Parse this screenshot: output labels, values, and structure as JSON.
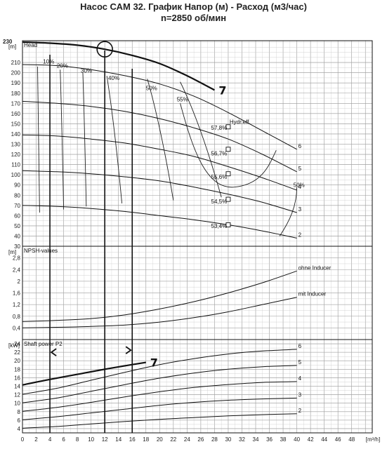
{
  "title": "Насос САМ 32. График  Напор (м) - Расход (м3/час)",
  "subtitle": "n=2850 об/мин",
  "chart_data": [
    {
      "type": "line",
      "panel": "head",
      "unit_label": "[m]",
      "name_label": "Head",
      "top_mark": "230",
      "xlim": [
        0,
        51
      ],
      "ylim": [
        30,
        230
      ],
      "yticks": [
        30,
        40,
        50,
        60,
        70,
        80,
        90,
        100,
        110,
        120,
        130,
        140,
        150,
        160,
        170,
        180,
        190,
        200,
        210
      ],
      "series": [
        {
          "name": "2",
          "x": [
            0,
            5,
            10,
            15,
            20,
            25,
            30,
            35,
            40
          ],
          "y": [
            70,
            69,
            67,
            64,
            60,
            56,
            51,
            45,
            38
          ]
        },
        {
          "name": "3",
          "x": [
            0,
            5,
            10,
            15,
            20,
            25,
            30,
            35,
            40
          ],
          "y": [
            104,
            103,
            101,
            98,
            94,
            88,
            81,
            73,
            63
          ]
        },
        {
          "name": "4",
          "x": [
            0,
            5,
            10,
            15,
            20,
            25,
            30,
            35,
            40
          ],
          "y": [
            139,
            138,
            135,
            131,
            125,
            118,
            108,
            97,
            85
          ]
        },
        {
          "name": "5",
          "x": [
            0,
            5,
            10,
            15,
            20,
            25,
            30,
            35,
            40
          ],
          "y": [
            172,
            170,
            167,
            162,
            155,
            146,
            135,
            120,
            103
          ]
        },
        {
          "name": "6",
          "x": [
            0,
            5,
            10,
            15,
            20,
            25,
            30,
            35,
            40
          ],
          "y": [
            208,
            207,
            203,
            197,
            189,
            177,
            161,
            143,
            125
          ]
        },
        {
          "name": "7",
          "x": [
            0,
            4,
            8,
            12,
            16,
            20,
            24,
            28
          ],
          "y": [
            230,
            229,
            227,
            223,
            217,
            209,
            197,
            183
          ]
        }
      ],
      "efficiency_labels": [
        {
          "text": "10%",
          "x": 3,
          "y": 209
        },
        {
          "text": "20%",
          "x": 5,
          "y": 205
        },
        {
          "text": "30%",
          "x": 8.5,
          "y": 200
        },
        {
          "text": "40%",
          "x": 12.5,
          "y": 193
        },
        {
          "text": "50%",
          "x": 18,
          "y": 183
        },
        {
          "text": "55%",
          "x": 22.5,
          "y": 172
        },
        {
          "text": "50%",
          "x": 39.5,
          "y": 88
        },
        {
          "text": "57,8%",
          "x": 27.5,
          "y": 144
        },
        {
          "text": "56,7%",
          "x": 27.5,
          "y": 119
        },
        {
          "text": "55,6%",
          "x": 27.5,
          "y": 96
        },
        {
          "text": "54,5%",
          "x": 27.5,
          "y": 72
        },
        {
          "text": "53,4%",
          "x": 27.5,
          "y": 48
        }
      ],
      "annotation": "Hydr.eff.",
      "marker_points": [
        {
          "x": 30,
          "y": 147
        },
        {
          "x": 30,
          "y": 125
        },
        {
          "x": 30,
          "y": 101
        },
        {
          "x": 30,
          "y": 76
        },
        {
          "x": 30,
          "y": 51
        }
      ],
      "handwritten_curve_label": "7",
      "circle_mark": {
        "x": 12,
        "y": 223
      }
    },
    {
      "type": "line",
      "panel": "npsh",
      "unit_label": "[m]",
      "name_label": "NPSH-values",
      "xlim": [
        0,
        51
      ],
      "ylim": [
        0,
        3.2
      ],
      "yticks": [
        0.4,
        0.8,
        1.2,
        1.6,
        2.0,
        2.4,
        2.8
      ],
      "yticklabels": [
        "0,4",
        "0,8",
        "1,2",
        "1,6",
        "2",
        "2,4",
        "2,8"
      ],
      "series": [
        {
          "name": "ohne Inducer",
          "x": [
            0,
            5,
            10,
            15,
            20,
            25,
            30,
            35,
            40
          ],
          "y": [
            0.62,
            0.66,
            0.72,
            0.85,
            1.05,
            1.3,
            1.6,
            1.95,
            2.35
          ]
        },
        {
          "name": "mit Inducer",
          "x": [
            0,
            5,
            10,
            15,
            20,
            25,
            30,
            35,
            40
          ],
          "y": [
            0.4,
            0.42,
            0.45,
            0.5,
            0.6,
            0.75,
            0.95,
            1.2,
            1.45
          ]
        }
      ]
    },
    {
      "type": "line",
      "panel": "power",
      "unit_label": "[kW]",
      "name_label": "Shaft power P2",
      "xlabel": "[m³/h]",
      "xlim": [
        0,
        51
      ],
      "ylim": [
        3,
        25
      ],
      "xticks": [
        0,
        2,
        4,
        6,
        8,
        10,
        12,
        14,
        16,
        18,
        20,
        22,
        24,
        26,
        28,
        30,
        32,
        34,
        36,
        38,
        40,
        42,
        44,
        46,
        48
      ],
      "yticks": [
        4,
        6,
        8,
        10,
        12,
        14,
        16,
        18,
        20,
        22,
        24
      ],
      "series": [
        {
          "name": "2",
          "x": [
            0,
            5,
            10,
            15,
            20,
            25,
            30,
            35,
            40
          ],
          "y": [
            4.1,
            4.5,
            5.1,
            5.7,
            6.2,
            6.6,
            7.0,
            7.3,
            7.5
          ]
        },
        {
          "name": "3",
          "x": [
            0,
            5,
            10,
            15,
            20,
            25,
            30,
            35,
            40
          ],
          "y": [
            6.1,
            6.8,
            7.7,
            8.6,
            9.5,
            10.2,
            10.7,
            11.0,
            11.2
          ]
        },
        {
          "name": "4",
          "x": [
            0,
            5,
            10,
            15,
            20,
            25,
            30,
            35,
            40
          ],
          "y": [
            8.1,
            9.0,
            10.2,
            11.5,
            12.7,
            13.7,
            14.4,
            14.9,
            15.1
          ]
        },
        {
          "name": "5",
          "x": [
            0,
            5,
            10,
            15,
            20,
            25,
            30,
            35,
            40
          ],
          "y": [
            10.1,
            11.2,
            12.8,
            14.4,
            15.9,
            17.1,
            18.0,
            18.6,
            18.9
          ]
        },
        {
          "name": "6",
          "x": [
            0,
            5,
            10,
            15,
            20,
            25,
            30,
            35,
            40
          ],
          "y": [
            12.1,
            13.5,
            15.4,
            17.3,
            19.1,
            20.5,
            21.6,
            22.3,
            22.7
          ]
        },
        {
          "name": "7",
          "x": [
            0,
            4,
            8,
            12,
            16,
            18
          ],
          "y": [
            14.3,
            15.6,
            16.8,
            18.0,
            19.1,
            19.6
          ]
        }
      ],
      "handwritten_curve_label": "7"
    }
  ]
}
